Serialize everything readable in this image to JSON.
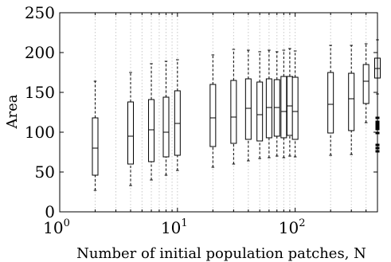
{
  "chart_data": {
    "type": "box",
    "title": "",
    "xlabel": "Number of initial population patches, N",
    "ylabel": "Area",
    "x_scale": "log",
    "xlim": [
      1,
      500
    ],
    "ylim": [
      0,
      250
    ],
    "grid": "x-major-and-minor-dotted",
    "x_ticks": [
      {
        "value": 1,
        "base": "10",
        "exp": "0"
      },
      {
        "value": 10,
        "base": "10",
        "exp": "1"
      },
      {
        "value": 100,
        "base": "10",
        "exp": "2"
      }
    ],
    "y_ticks": [
      "0",
      "50",
      "100",
      "150",
      "200",
      "250"
    ],
    "y_tick_values": [
      0,
      50,
      100,
      150,
      200,
      250
    ],
    "boxes": [
      {
        "n": 2,
        "min": 27,
        "q1": 46,
        "median": 80,
        "q3": 118,
        "max": 164,
        "outliers": []
      },
      {
        "n": 4,
        "min": 33,
        "q1": 60,
        "median": 95,
        "q3": 138,
        "max": 175,
        "outliers": []
      },
      {
        "n": 6,
        "min": 40,
        "q1": 63,
        "median": 103,
        "q3": 141,
        "max": 186,
        "outliers": []
      },
      {
        "n": 8,
        "min": 46,
        "q1": 69,
        "median": 100,
        "q3": 144,
        "max": 189,
        "outliers": []
      },
      {
        "n": 10,
        "min": 52,
        "q1": 71,
        "median": 111,
        "q3": 152,
        "max": 191,
        "outliers": []
      },
      {
        "n": 20,
        "min": 56,
        "q1": 82,
        "median": 118,
        "q3": 160,
        "max": 197,
        "outliers": []
      },
      {
        "n": 30,
        "min": 60,
        "q1": 86,
        "median": 119,
        "q3": 165,
        "max": 204,
        "outliers": []
      },
      {
        "n": 40,
        "min": 64,
        "q1": 91,
        "median": 130,
        "q3": 167,
        "max": 203,
        "outliers": []
      },
      {
        "n": 50,
        "min": 67,
        "q1": 89,
        "median": 122,
        "q3": 163,
        "max": 201,
        "outliers": []
      },
      {
        "n": 60,
        "min": 68,
        "q1": 93,
        "median": 131,
        "q3": 167,
        "max": 203,
        "outliers": []
      },
      {
        "n": 70,
        "min": 70,
        "q1": 95,
        "median": 131,
        "q3": 166,
        "max": 201,
        "outliers": []
      },
      {
        "n": 80,
        "min": 68,
        "q1": 93,
        "median": 126,
        "q3": 170,
        "max": 203,
        "outliers": []
      },
      {
        "n": 90,
        "min": 70,
        "q1": 96,
        "median": 133,
        "q3": 170,
        "max": 205,
        "outliers": []
      },
      {
        "n": 100,
        "min": 69,
        "q1": 91,
        "median": 126,
        "q3": 169,
        "max": 202,
        "outliers": []
      },
      {
        "n": 200,
        "min": 71,
        "q1": 99,
        "median": 135,
        "q3": 175,
        "max": 209,
        "outliers": []
      },
      {
        "n": 300,
        "min": 72,
        "q1": 102,
        "median": 142,
        "q3": 174,
        "max": 209,
        "outliers": []
      },
      {
        "n": 400,
        "min": 112,
        "q1": 136,
        "median": 164,
        "q3": 185,
        "max": 211,
        "outliers": []
      },
      {
        "n": 500,
        "min": 148,
        "q1": 168,
        "median": 180,
        "q3": 193,
        "max": 216,
        "outliers": [
          118,
          113,
          110,
          107,
          104,
          99,
          84,
          80,
          76
        ]
      }
    ]
  }
}
